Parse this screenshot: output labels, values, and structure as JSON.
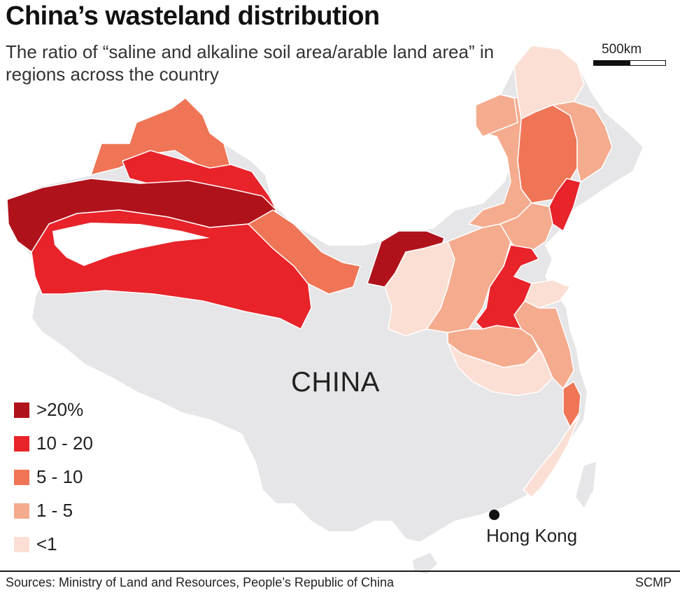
{
  "header": {
    "title": "China’s wasteland distribution",
    "subtitle": "The ratio of “saline and alkaline soil area/arable land area” in regions across the country"
  },
  "scale": {
    "label": "500km"
  },
  "map": {
    "country_label": "CHINA",
    "city": {
      "label": "Hong Kong"
    }
  },
  "legend": {
    "items": [
      {
        "label": ">20%",
        "color": "#b0121b"
      },
      {
        "label": "10 - 20",
        "color": "#e8232a"
      },
      {
        "label": "5 - 10",
        "color": "#ef7556"
      },
      {
        "label": "1 - 5",
        "color": "#f5ab8e"
      },
      {
        "label": "<1",
        "color": "#fbdfd4"
      }
    ]
  },
  "colors": {
    "land": "#e6e6e8",
    "border": "#ffffff"
  },
  "footer": {
    "sources": "Sources: Ministry of Land and Resources, People’s Republic of China",
    "credit": "SCMP"
  }
}
